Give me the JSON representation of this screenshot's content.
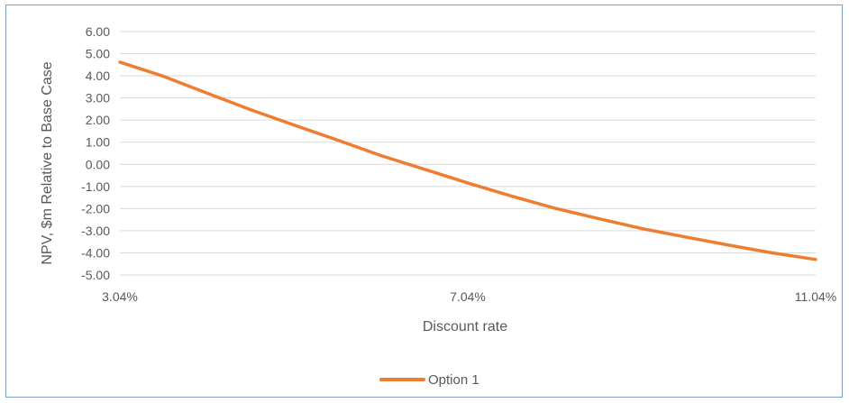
{
  "chart_data": {
    "type": "line",
    "xlabel": "Discount rate",
    "ylabel": "NPV, $m Relative to Base Case",
    "xlim": [
      3.04,
      11.04
    ],
    "ylim": [
      -5.0,
      6.0
    ],
    "x_tick_labels": [
      "3.04%",
      "7.04%",
      "11.04%"
    ],
    "x_ticks": [
      3.04,
      7.04,
      11.04
    ],
    "y_ticks": [
      6.0,
      5.0,
      4.0,
      3.0,
      2.0,
      1.0,
      0.0,
      -1.0,
      -2.0,
      -3.0,
      -4.0,
      -5.0
    ],
    "y_tick_labels": [
      "6.00",
      "5.00",
      "4.00",
      "3.00",
      "2.00",
      "1.00",
      "0.00",
      "-1.00",
      "-2.00",
      "-3.00",
      "-4.00",
      "-5.00"
    ],
    "grid": true,
    "legend_position": "bottom",
    "series": [
      {
        "name": "Option 1",
        "color": "#ed7d31",
        "x": [
          3.04,
          3.54,
          4.04,
          4.54,
          5.04,
          5.54,
          6.04,
          6.54,
          7.04,
          7.54,
          8.04,
          8.54,
          9.04,
          9.54,
          10.04,
          10.54,
          11.04
        ],
        "y": [
          4.62,
          3.98,
          3.22,
          2.47,
          1.78,
          1.1,
          0.4,
          -0.22,
          -0.84,
          -1.43,
          -1.98,
          -2.45,
          -2.9,
          -3.28,
          -3.65,
          -4.0,
          -4.3
        ]
      }
    ]
  }
}
